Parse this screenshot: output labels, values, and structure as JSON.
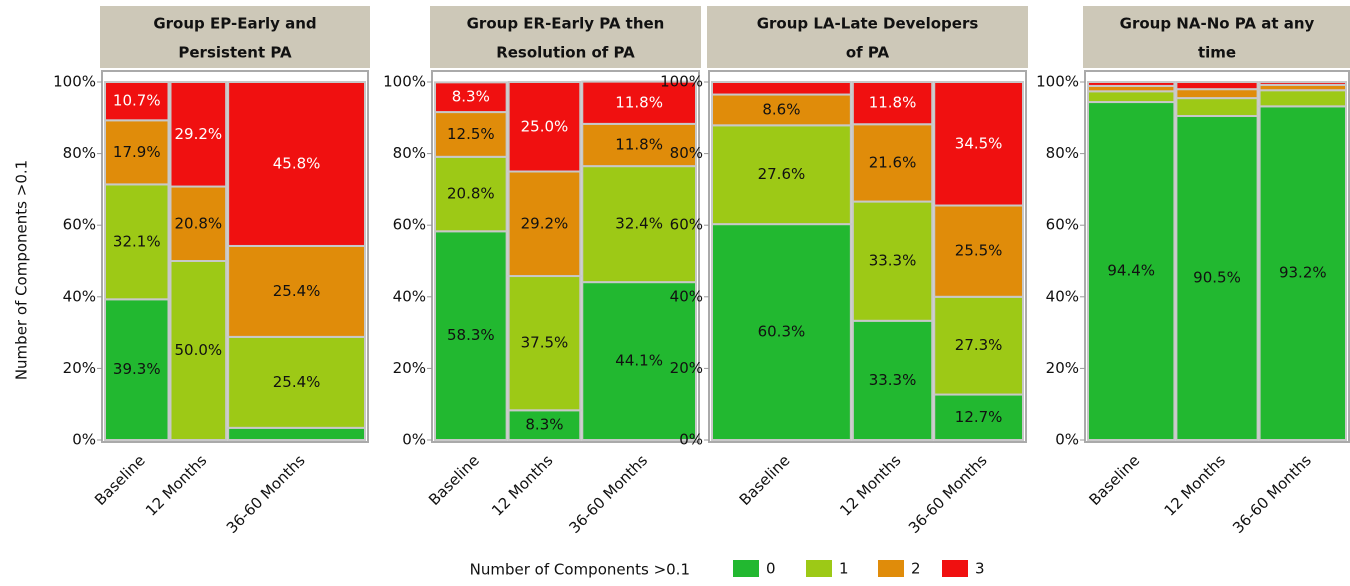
{
  "ylabel": "Number of Components >0.1",
  "legend_title": "Number of Components >0.1",
  "chart_data": [
    {
      "type": "mosaic",
      "title": [
        "Group EP-Early and",
        "Persistent PA"
      ],
      "categories": [
        "Baseline",
        "12 Months",
        "36-60 Months"
      ],
      "column_widths": [
        25,
        22,
        53
      ],
      "ylim": [
        0,
        100
      ],
      "yticks": [
        {
          "value": 0,
          "label": "0%"
        },
        {
          "value": 20,
          "label": "20%"
        },
        {
          "value": 40,
          "label": "40%"
        },
        {
          "value": 60,
          "label": "60%"
        },
        {
          "value": 80,
          "label": "80%"
        },
        {
          "value": 100,
          "label": "100%"
        }
      ],
      "series": [
        {
          "name": "0",
          "color": "#22b830",
          "values": [
            39.3,
            0,
            3.4
          ],
          "value_labels": [
            "39.3%",
            null,
            null
          ]
        },
        {
          "name": "1",
          "color": "#9dc916",
          "values": [
            32.1,
            50.0,
            25.4
          ],
          "value_labels": [
            "32.1%",
            "50.0%",
            "25.4%"
          ]
        },
        {
          "name": "2",
          "color": "#e08c0a",
          "values": [
            17.9,
            20.8,
            25.4
          ],
          "value_labels": [
            "17.9%",
            "20.8%",
            "25.4%"
          ]
        },
        {
          "name": "3",
          "color": "#f01010",
          "values": [
            10.7,
            29.2,
            45.8
          ],
          "value_labels": [
            "10.7%",
            "29.2%",
            "45.8%"
          ]
        }
      ]
    },
    {
      "type": "mosaic",
      "title": [
        "Group ER-Early PA then",
        "Resolution of PA"
      ],
      "categories": [
        "Baseline",
        "12 Months",
        "36-60 Months"
      ],
      "column_widths": [
        28,
        28,
        44
      ],
      "ylim": [
        0,
        100
      ],
      "yticks": [
        {
          "value": 0,
          "label": "0%"
        },
        {
          "value": 20,
          "label": "20%"
        },
        {
          "value": 40,
          "label": "40%"
        },
        {
          "value": 60,
          "label": "60%"
        },
        {
          "value": 80,
          "label": "80%"
        },
        {
          "value": 100,
          "label": "100%"
        }
      ],
      "series": [
        {
          "name": "0",
          "color": "#22b830",
          "values": [
            58.3,
            8.3,
            44.1
          ],
          "value_labels": [
            "58.3%",
            "8.3%",
            "44.1%"
          ]
        },
        {
          "name": "1",
          "color": "#9dc916",
          "values": [
            20.8,
            37.5,
            32.4
          ],
          "value_labels": [
            "20.8%",
            "37.5%",
            "32.4%"
          ]
        },
        {
          "name": "2",
          "color": "#e08c0a",
          "values": [
            12.5,
            29.2,
            11.8
          ],
          "value_labels": [
            "12.5%",
            "29.2%",
            "11.8%"
          ]
        },
        {
          "name": "3",
          "color": "#f01010",
          "values": [
            8.3,
            25.0,
            11.8
          ],
          "value_labels": [
            "8.3%",
            "25.0%",
            "11.8%"
          ]
        }
      ]
    },
    {
      "type": "mosaic",
      "title": [
        "Group LA-Late Developers",
        "of PA"
      ],
      "categories": [
        "Baseline",
        "12 Months",
        "36-60 Months"
      ],
      "column_widths": [
        45,
        26,
        29
      ],
      "ylim": [
        0,
        100
      ],
      "yticks": [
        {
          "value": 0,
          "label": "0%"
        },
        {
          "value": 20,
          "label": "20%"
        },
        {
          "value": 40,
          "label": "40%"
        },
        {
          "value": 60,
          "label": "60%"
        },
        {
          "value": 80,
          "label": "80%"
        },
        {
          "value": 100,
          "label": "100%"
        }
      ],
      "series": [
        {
          "name": "0",
          "color": "#22b830",
          "values": [
            60.3,
            33.3,
            12.7
          ],
          "value_labels": [
            "60.3%",
            "33.3%",
            "12.7%"
          ]
        },
        {
          "name": "1",
          "color": "#9dc916",
          "values": [
            27.6,
            33.3,
            27.3
          ],
          "value_labels": [
            "27.6%",
            "33.3%",
            "27.3%"
          ]
        },
        {
          "name": "2",
          "color": "#e08c0a",
          "values": [
            8.6,
            21.6,
            25.5
          ],
          "value_labels": [
            "8.6%",
            "21.6%",
            "25.5%"
          ]
        },
        {
          "name": "3",
          "color": "#f01010",
          "values": [
            3.5,
            11.8,
            34.5
          ],
          "value_labels": [
            null,
            "11.8%",
            "34.5%"
          ]
        }
      ]
    },
    {
      "type": "mosaic",
      "title": [
        "Group NA-No PA at any",
        "time"
      ],
      "categories": [
        "Baseline",
        "12 Months",
        "36-60 Months"
      ],
      "column_widths": [
        34,
        32,
        34
      ],
      "ylim": [
        0,
        100
      ],
      "yticks": [
        {
          "value": 0,
          "label": "0%"
        },
        {
          "value": 20,
          "label": "20%"
        },
        {
          "value": 40,
          "label": "40%"
        },
        {
          "value": 60,
          "label": "60%"
        },
        {
          "value": 80,
          "label": "80%"
        },
        {
          "value": 100,
          "label": "100%"
        }
      ],
      "series": [
        {
          "name": "0",
          "color": "#22b830",
          "values": [
            94.4,
            90.5,
            93.2
          ],
          "value_labels": [
            "94.4%",
            "90.5%",
            "93.2%"
          ]
        },
        {
          "name": "1",
          "color": "#9dc916",
          "values": [
            3.0,
            5.0,
            4.5
          ],
          "value_labels": [
            null,
            null,
            null
          ]
        },
        {
          "name": "2",
          "color": "#e08c0a",
          "values": [
            1.5,
            2.5,
            1.5
          ],
          "value_labels": [
            null,
            null,
            null
          ]
        },
        {
          "name": "3",
          "color": "#f01010",
          "values": [
            1.1,
            2.0,
            0.8
          ],
          "value_labels": [
            null,
            null,
            null
          ]
        }
      ]
    }
  ]
}
